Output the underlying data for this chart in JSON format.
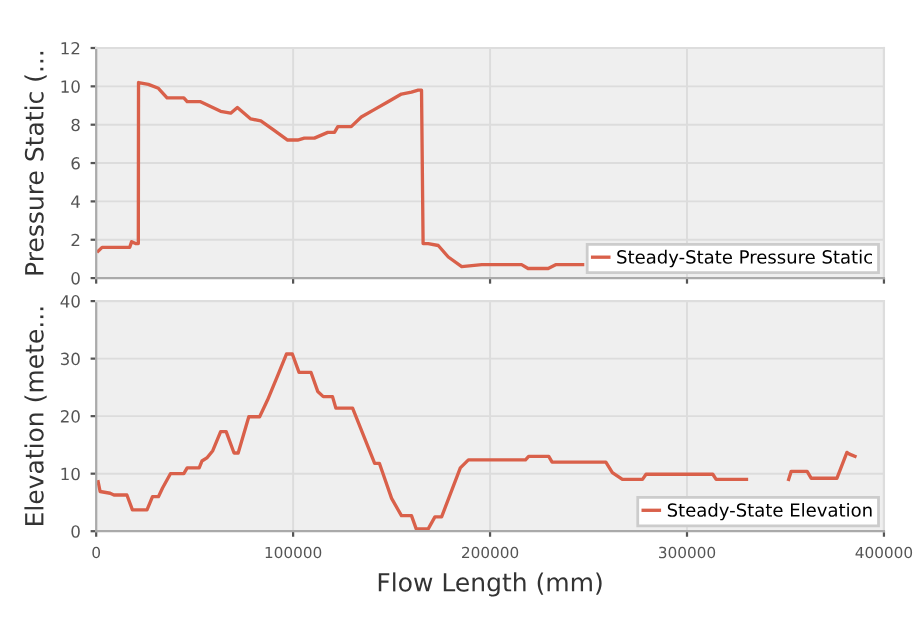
{
  "chart_data": [
    {
      "type": "line",
      "ylabel": "Pressure Static (...",
      "xlim": [
        0,
        400000
      ],
      "xticks": [
        0,
        100000,
        200000,
        300000,
        400000
      ],
      "ylim": [
        0,
        12
      ],
      "yticks": [
        0,
        2,
        4,
        6,
        8,
        10,
        12
      ],
      "tick_labels": "y",
      "grid": true,
      "legend": "bottom right",
      "series": [
        {
          "name": "Steady-State Pressure Static",
          "color": "#d9604a",
          "x": [
            1000,
            3000,
            8000,
            12000,
            17000,
            18000,
            20000,
            21400,
            21500,
            26500,
            31600,
            36000,
            44500,
            46200,
            53000,
            63200,
            68300,
            71700,
            78500,
            83600,
            90400,
            97200,
            102300,
            105700,
            110800,
            117600,
            121000,
            122700,
            129500,
            134600,
            141400,
            148200,
            155000,
            160100,
            163500,
            165200,
            166000,
            168600,
            173700,
            178800,
            185600,
            195800,
            216000,
            219300,
            229500,
            233300,
            247000
          ],
          "values": [
            1.4,
            1.6,
            1.6,
            1.6,
            1.6,
            1.9,
            1.8,
            1.8,
            10.2,
            10.1,
            9.9,
            9.4,
            9.4,
            9.2,
            9.2,
            8.7,
            8.6,
            8.9,
            8.3,
            8.2,
            7.7,
            7.2,
            7.2,
            7.3,
            7.3,
            7.6,
            7.6,
            7.9,
            7.9,
            8.4,
            8.8,
            9.2,
            9.6,
            9.7,
            9.8,
            9.8,
            1.8,
            1.8,
            1.7,
            1.1,
            0.6,
            0.7,
            0.7,
            0.5,
            0.5,
            0.7,
            0.7
          ]
        }
      ]
    },
    {
      "type": "line",
      "xlabel": "Flow Length (mm)",
      "ylabel": "Elevation (mete...",
      "xlim": [
        0,
        400000
      ],
      "xticks": [
        0,
        100000,
        200000,
        300000,
        400000
      ],
      "ylim": [
        0,
        40
      ],
      "yticks": [
        0,
        10,
        20,
        30,
        40
      ],
      "grid": true,
      "legend": "bottom right",
      "series": [
        {
          "name": "Steady-State Elevation",
          "color": "#d9604a",
          "x": [
            1000,
            2000,
            7100,
            9000,
            15600,
            18400,
            25800,
            28600,
            31600,
            33700,
            37700,
            44500,
            46200,
            52300,
            53700,
            56400,
            59200,
            63200,
            66000,
            70000,
            72100,
            77500,
            83000,
            87000,
            92100,
            96600,
            99600,
            103000,
            109100,
            112500,
            115300,
            120000,
            121700,
            130200,
            141400,
            143800,
            150000,
            155000,
            160100,
            162500,
            168600,
            172000,
            175400,
            184900,
            189000,
            218000,
            219600,
            229800,
            231500,
            258800,
            262100,
            267200,
            277400,
            279200,
            313100,
            314800,
            330200,
            340000,
            351600,
            352900,
            361000,
            363100,
            376100,
            381200,
            382500,
            385300
          ],
          "values": [
            8.6,
            6.9,
            6.6,
            6.3,
            6.3,
            3.7,
            3.7,
            6.0,
            6.0,
            7.5,
            10,
            10,
            11,
            11,
            12.2,
            12.8,
            14,
            17.3,
            17.3,
            13.6,
            13.6,
            19.9,
            19.9,
            22.8,
            27,
            30.8,
            30.8,
            27.6,
            27.6,
            24.3,
            23.4,
            23.4,
            21.4,
            21.4,
            11.8,
            11.8,
            5.7,
            2.7,
            2.7,
            0.4,
            0.4,
            2.5,
            2.5,
            11,
            12.4,
            12.4,
            13,
            13,
            12,
            12,
            10.2,
            9,
            9,
            9.9,
            9.9,
            9,
            9,
            null,
            9,
            10.4,
            10.4,
            9.2,
            9.2,
            13.7,
            13.4,
            13
          ]
        }
      ]
    }
  ]
}
